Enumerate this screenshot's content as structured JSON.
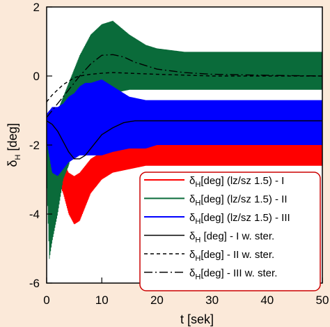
{
  "chart_data": {
    "type": "line",
    "xlabel": "t [sek]",
    "ylabel_main": "δ",
    "ylabel_sub": "H",
    "ylabel_unit": " [deg]",
    "xlim": [
      0,
      50
    ],
    "ylim": [
      -6,
      2
    ],
    "xticks": [
      0,
      10,
      20,
      30,
      40,
      50
    ],
    "yticks": [
      2,
      0,
      -2,
      -4,
      -6
    ],
    "grid": false,
    "legend_position": "bottom-right",
    "colors": {
      "background": "#fbe9d9",
      "plot_area": "#ffffff",
      "legend_border": "#cc0000",
      "red": "#ff0000",
      "green": "#0a6b3a",
      "blue": "#0000ff",
      "black": "#000000"
    },
    "series": [
      {
        "legend_main": "δ",
        "legend_sub": "H",
        "legend_rest": "[deg] (lz/sz 1.5) - I",
        "color": "#ff0000",
        "style": "noisy",
        "dash": "",
        "x": [
          0,
          1,
          2,
          3,
          4,
          5,
          6,
          7,
          8,
          10,
          12,
          15,
          18,
          20,
          25,
          30,
          40,
          50
        ],
        "upper": [
          -1.2,
          -1.1,
          -2.0,
          -2.5,
          -2.8,
          -2.9,
          -2.8,
          -2.6,
          -2.4,
          -2.2,
          -2.0,
          -1.9,
          -1.9,
          -1.9,
          -1.9,
          -1.9,
          -1.9,
          -1.9
        ],
        "lower": [
          -1.8,
          -1.7,
          -3.0,
          -3.4,
          -4.0,
          -4.3,
          -4.2,
          -3.8,
          -3.4,
          -3.0,
          -2.8,
          -2.7,
          -2.6,
          -2.6,
          -2.6,
          -2.6,
          -2.6,
          -2.6
        ]
      },
      {
        "legend_main": "δ",
        "legend_sub": "H",
        "legend_rest": "[deg] (lz/sz 1.5) - II",
        "color": "#0a6b3a",
        "style": "noisy",
        "dash": "",
        "x": [
          0,
          0.5,
          1,
          2,
          3,
          4,
          5,
          6,
          7,
          8,
          10,
          12,
          15,
          18,
          20,
          25,
          30,
          40,
          50
        ],
        "upper": [
          -1.5,
          -2.0,
          -1.5,
          -1.0,
          -0.6,
          -0.2,
          0.2,
          0.6,
          0.9,
          1.2,
          1.5,
          1.6,
          1.2,
          0.9,
          0.8,
          0.7,
          0.7,
          0.7,
          0.7
        ],
        "lower": [
          -3.0,
          -5.3,
          -4.8,
          -4.0,
          -3.0,
          -2.6,
          -2.0,
          -1.6,
          -1.2,
          -0.9,
          -0.6,
          -0.5,
          -0.4,
          -0.4,
          -0.4,
          -0.4,
          -0.4,
          -0.4,
          -0.4
        ]
      },
      {
        "legend_main": "δ",
        "legend_sub": "H",
        "legend_rest": "[deg] (lz/sz 1.5) - III",
        "color": "#0000ff",
        "style": "noisy",
        "dash": "",
        "x": [
          0,
          1,
          2,
          3,
          4,
          5,
          6,
          7,
          8,
          10,
          12,
          15,
          18,
          20,
          25,
          30,
          40,
          50
        ],
        "upper": [
          -1.1,
          -0.9,
          -0.9,
          -0.8,
          -0.6,
          -0.5,
          -0.3,
          -0.2,
          -0.2,
          -0.1,
          -0.3,
          -0.6,
          -0.7,
          -0.7,
          -0.7,
          -0.7,
          -0.7,
          -0.7
        ],
        "lower": [
          -1.9,
          -2.8,
          -2.9,
          -2.7,
          -2.5,
          -2.4,
          -2.3,
          -2.3,
          -2.3,
          -2.3,
          -2.2,
          -2.1,
          -2.1,
          -2.0,
          -2.0,
          -2.0,
          -2.0,
          -2.0
        ]
      },
      {
        "legend_main": "δ",
        "legend_sub": "H",
        "legend_rest": " [deg] - I w. ster.",
        "color": "#000000",
        "style": "line",
        "dash": "",
        "x": [
          0,
          1,
          2,
          3,
          4,
          5,
          6,
          7,
          8,
          9,
          10,
          12,
          14,
          16,
          18,
          20,
          25,
          30,
          40,
          50
        ],
        "y": [
          -1.3,
          -1.4,
          -1.6,
          -1.9,
          -2.2,
          -2.4,
          -2.4,
          -2.3,
          -2.1,
          -1.9,
          -1.7,
          -1.5,
          -1.35,
          -1.3,
          -1.3,
          -1.3,
          -1.3,
          -1.3,
          -1.3,
          -1.3
        ]
      },
      {
        "legend_main": "δ",
        "legend_sub": "H",
        "legend_rest": "[deg]  - II w. ster.",
        "color": "#000000",
        "style": "line",
        "dash": "5,4",
        "x": [
          0,
          1,
          2,
          3,
          4,
          5,
          6,
          8,
          10,
          12,
          15,
          20,
          30,
          40,
          50
        ],
        "y": [
          -0.75,
          -0.55,
          -0.4,
          -0.25,
          -0.15,
          -0.05,
          0.0,
          0.05,
          0.08,
          0.1,
          0.08,
          0.05,
          0.0,
          0.0,
          0.0
        ]
      },
      {
        "legend_main": "δ",
        "legend_sub": "H",
        "legend_rest": "[deg]   - III w. ster.",
        "color": "#000000",
        "style": "line",
        "dash": "12,4,2,4",
        "x": [
          0,
          1,
          2,
          3,
          4,
          5,
          6,
          8,
          10,
          12,
          14,
          16,
          18,
          20,
          25,
          30,
          40,
          50
        ],
        "y": [
          -1.2,
          -1.0,
          -0.8,
          -0.6,
          -0.4,
          -0.2,
          0.0,
          0.35,
          0.6,
          0.62,
          0.55,
          0.4,
          0.3,
          0.2,
          0.1,
          0.05,
          0.02,
          0.0
        ]
      }
    ]
  }
}
